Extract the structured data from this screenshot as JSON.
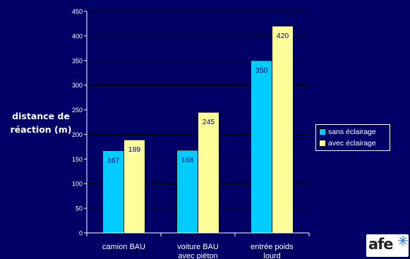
{
  "chart_data": {
    "type": "bar",
    "ylabel": "distance de réaction (m)",
    "ylabel_lines": [
      "distance de",
      "réaction (m)"
    ],
    "ylim": [
      0,
      450
    ],
    "yticks": [
      0,
      50,
      100,
      150,
      200,
      250,
      300,
      350,
      400,
      450
    ],
    "categories": [
      [
        "camion BAU"
      ],
      [
        "voiture BAU",
        "avec piéton"
      ],
      [
        "entrée poids",
        "lourd"
      ]
    ],
    "series": [
      {
        "name": "sans éclairage",
        "color": "#00ccff",
        "values": [
          167,
          168,
          350
        ]
      },
      {
        "name": "avec éclairage",
        "color": "#ffff99",
        "values": [
          189,
          245,
          420
        ]
      }
    ],
    "legend_position": "right",
    "grid": true,
    "data_labels": true
  },
  "colors": {
    "background": "#000066",
    "axis": "#ffffff",
    "grid": "#000000",
    "label_text": "#000066"
  },
  "logo": {
    "text": "afe",
    "icon": "afe-logo-star-icon"
  }
}
